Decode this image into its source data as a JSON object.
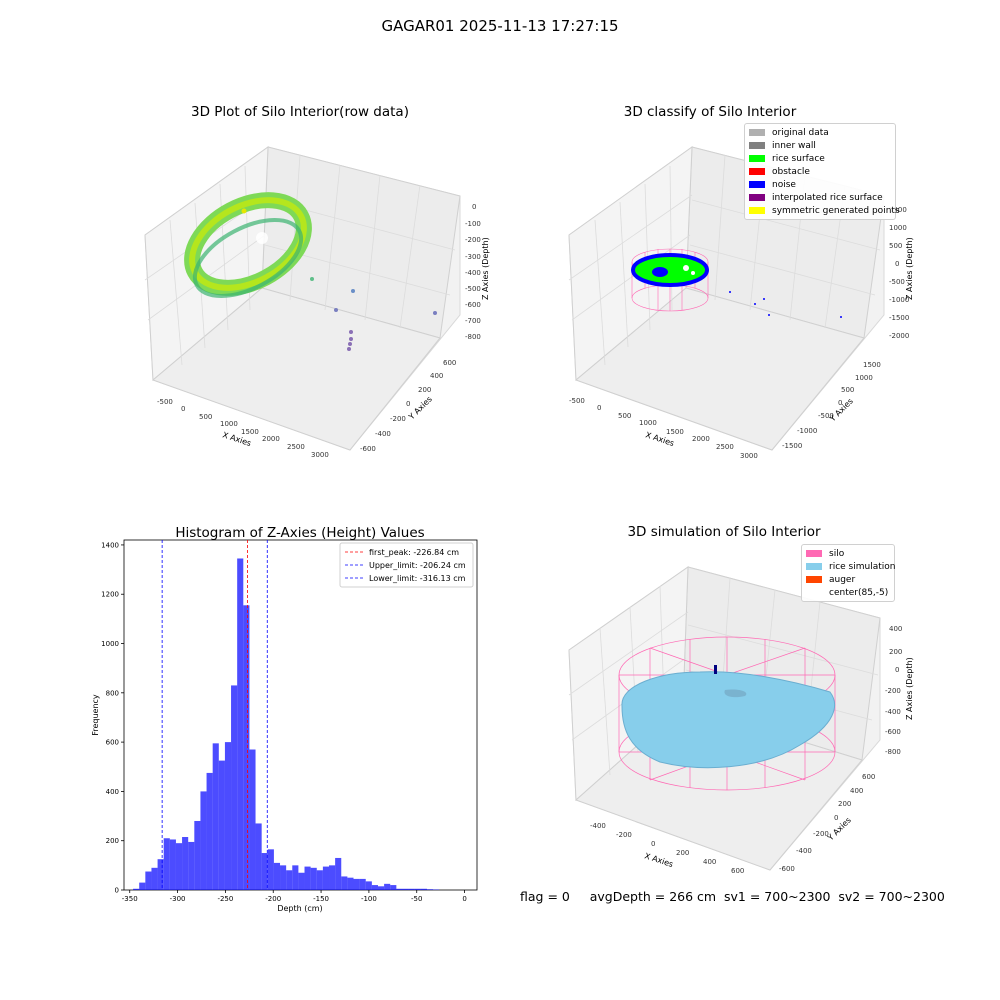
{
  "suptitle": "GAGAR01 2025-11-13 17:27:15",
  "footer": "flag = 0     avgDepth = 266 cm  sv1 = 700~2300  sv2 = 700~2300",
  "panels": {
    "raw": {
      "title": "3D Plot of Silo Interior(row data)",
      "xlabel": "X Axies",
      "ylabel": "Y Axies",
      "zlabel": "Z Axies (Depth)",
      "xticks": [
        "-500",
        "0",
        "500",
        "1000",
        "1500",
        "2000",
        "2500",
        "3000"
      ],
      "yticks": [
        "-600",
        "-400",
        "-200",
        "0",
        "200",
        "400",
        "600"
      ],
      "zticks": [
        "0",
        "-100",
        "-200",
        "-300",
        "-400",
        "-500",
        "-600",
        "-700",
        "-800"
      ]
    },
    "classify": {
      "title": "3D classify of Silo Interior",
      "xlabel": "X Axies",
      "ylabel": "Y Axies",
      "zlabel": "Z Axies (Depth)",
      "xticks": [
        "-500",
        "0",
        "500",
        "1000",
        "1500",
        "2000",
        "2500",
        "3000"
      ],
      "yticks": [
        "-1500",
        "-1000",
        "-500",
        "0",
        "500",
        "1000",
        "1500"
      ],
      "zticks": [
        "1500",
        "1000",
        "500",
        "0",
        "-500",
        "-1000",
        "-1500",
        "-2000"
      ],
      "legend": [
        {
          "label": "original data",
          "color": "#b0b0b0"
        },
        {
          "label": "inner wall",
          "color": "#808080"
        },
        {
          "label": "rice surface",
          "color": "#00ff00"
        },
        {
          "label": "obstacle",
          "color": "#ff0000"
        },
        {
          "label": "noise",
          "color": "#0000ff"
        },
        {
          "label": "interpolated rice surface",
          "color": "#800080"
        },
        {
          "label": "symmetric generated points",
          "color": "#ffff00"
        }
      ]
    },
    "simulation": {
      "title": "3D simulation of Silo Interior",
      "xlabel": "X Axies",
      "ylabel": "Y Axies",
      "zlabel": "Z Axies (Depth)",
      "xticks": [
        "-400",
        "-200",
        "0",
        "200",
        "400",
        "600"
      ],
      "yticks": [
        "-600",
        "-400",
        "-200",
        "0",
        "200",
        "400",
        "600"
      ],
      "zticks": [
        "400",
        "200",
        "0",
        "-200",
        "-400",
        "-600",
        "-800"
      ],
      "legend": [
        {
          "label": "silo",
          "color": "#ff69b4"
        },
        {
          "label": "rice simulation",
          "color": "#87ceeb"
        },
        {
          "label": "auger",
          "color": "#ff4500"
        },
        {
          "label": "center(85,-5)",
          "color": ""
        }
      ]
    }
  },
  "chart_data": [
    {
      "type": "scatter",
      "title": "3D Plot of Silo Interior(row data)",
      "xlabel": "X Axies",
      "ylabel": "Y Axies",
      "zlabel": "Z Axies (Depth)",
      "xlim": [
        -600,
        3200
      ],
      "ylim": [
        -650,
        650
      ],
      "zlim": [
        -850,
        50
      ]
    },
    {
      "type": "scatter",
      "title": "3D classify of Silo Interior",
      "xlabel": "X Axies",
      "ylabel": "Y Axies",
      "zlabel": "Z Axies (Depth)",
      "xlim": [
        -600,
        3200
      ],
      "ylim": [
        -1700,
        1700
      ],
      "zlim": [
        -2100,
        1600
      ],
      "legend_position": "top-right"
    },
    {
      "type": "bar",
      "title": "Histogram of Z-Axies (Height) Values",
      "xlabel": "Depth (cm)",
      "ylabel": "Frequency",
      "xlim": [
        -356,
        13
      ],
      "ylim": [
        0,
        1420
      ],
      "xticks": [
        -350,
        -300,
        -250,
        -200,
        -150,
        -100,
        -50,
        0
      ],
      "yticks": [
        0,
        200,
        400,
        600,
        800,
        1000,
        1200,
        1400
      ],
      "bin_start": -346.5,
      "bin_width": 6.4,
      "values": [
        5,
        30,
        75,
        90,
        125,
        210,
        205,
        190,
        215,
        195,
        280,
        400,
        475,
        595,
        525,
        600,
        830,
        1345,
        1155,
        570,
        270,
        150,
        165,
        110,
        100,
        80,
        100,
        70,
        95,
        90,
        80,
        95,
        100,
        130,
        55,
        50,
        45,
        45,
        35,
        20,
        15,
        25,
        20,
        5,
        5,
        5,
        5,
        5,
        3,
        2
      ],
      "bar_color": "#0000ff",
      "lines": [
        {
          "label": "first_peak: -226.84 cm",
          "x": -226.84,
          "color": "#ff0000"
        },
        {
          "label": "Upper_limit: -206.24 cm",
          "x": -206.24,
          "color": "#0000ff"
        },
        {
          "label": "Lower_limit: -316.13 cm",
          "x": -316.13,
          "color": "#0000ff"
        }
      ],
      "legend_position": "top-right"
    },
    {
      "type": "scatter",
      "title": "3D simulation of Silo Interior",
      "xlabel": "X Axies",
      "ylabel": "Y Axies",
      "zlabel": "Z Axies (Depth)",
      "xlim": [
        -550,
        750
      ],
      "ylim": [
        -700,
        700
      ],
      "zlim": [
        -900,
        450
      ],
      "legend_position": "top-right"
    }
  ]
}
